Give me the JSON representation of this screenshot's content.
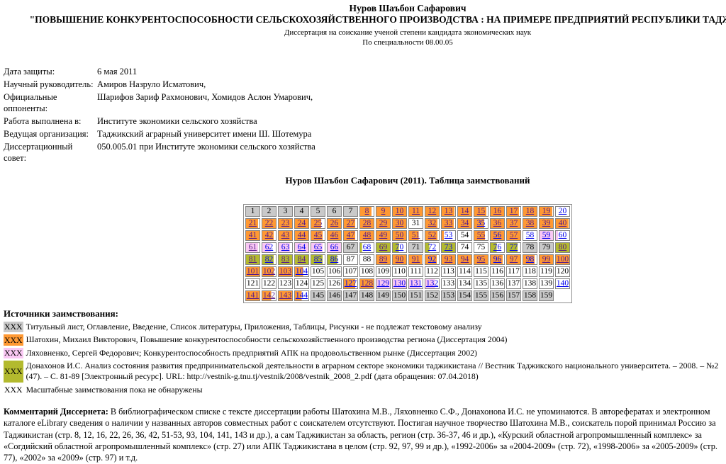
{
  "header": {
    "author": "Нуров Шаъбон Сафарович",
    "title": "\"ПОВЫШЕНИЕ КОНКУРЕНТОСПОСОБНОСТИ СЕЛЬСКОХОЗЯЙСТВЕННОГО ПРОИЗВОДСТВА : НА ПРИМЕРЕ ПРЕДПРИЯТИЙ РЕСПУБЛИКИ ТАДЖИКИСТАН\"",
    "subtitle": "Диссертация на соискание ученой степени кандидата экономических наук",
    "specialty": "По специальности 08.00.05"
  },
  "meta": {
    "rows": [
      {
        "label": "Дата защиты:",
        "value": "6 мая 2011"
      },
      {
        "label": "Научный руководитель:",
        "value": "Амиров Назруло Исматович,"
      },
      {
        "label": "Официальные оппоненты:",
        "value": "Шарифов Зариф Рахмонович, Хомидов Аслон Умарович,"
      },
      {
        "label": "Работа выполнена в:",
        "value": "Институте экономики сельского хозяйства"
      },
      {
        "label": "Ведущая организация:",
        "value": "Таджикский аграрный университет имени Ш. Шотемура"
      },
      {
        "label": "Диссертационный совет:",
        "value": "050.005.01 при Институте экономики сельского хозяйства"
      }
    ]
  },
  "grid": {
    "title": "Нуров Шаъбон Сафарович (2011). Таблица заимствований",
    "colors": {
      "g": "#c9c9c9",
      "w": "#ffffff",
      "o": "#ff9933",
      "p": "#f9c8f3",
      "l": "#b3ba2e"
    },
    "link_colors": {
      "visited": "#551A8B",
      "unvisited": "#0000EE"
    },
    "rows": [
      [
        [
          "1",
          "g",
          1,
          ""
        ],
        [
          "2",
          "g",
          1,
          ""
        ],
        [
          "3",
          "g",
          1,
          ""
        ],
        [
          "4",
          "g",
          1,
          ""
        ],
        [
          "5",
          "g",
          1,
          ""
        ],
        [
          "6",
          "g",
          1,
          ""
        ],
        [
          "7",
          "g",
          1,
          ""
        ],
        [
          "8",
          "o",
          0.85,
          "v"
        ],
        [
          "9",
          "o",
          1,
          "v"
        ],
        [
          "10",
          "o",
          1,
          "v"
        ],
        [
          "11",
          "o",
          1,
          "v"
        ],
        [
          "12",
          "o",
          1,
          "v"
        ],
        [
          "13",
          "o",
          0.95,
          "v"
        ],
        [
          "14",
          "o",
          1,
          "v"
        ],
        [
          "15",
          "o",
          0.9,
          "v"
        ],
        [
          "16",
          "o",
          1,
          "v"
        ],
        [
          "17",
          "o",
          0.9,
          "v"
        ],
        [
          "18",
          "o",
          1,
          "v"
        ],
        [
          "19",
          "o",
          0.95,
          "v"
        ],
        [
          "20",
          "w",
          0,
          "u"
        ]
      ],
      [
        [
          "21",
          "o",
          0.9,
          "v"
        ],
        [
          "22",
          "o",
          1,
          "v"
        ],
        [
          "23",
          "o",
          1,
          "v"
        ],
        [
          "24",
          "o",
          1,
          "v"
        ],
        [
          "25",
          "o",
          0.75,
          "v"
        ],
        [
          "26",
          "o",
          1,
          "v"
        ],
        [
          "27",
          "o",
          0.85,
          "v"
        ],
        [
          "28",
          "o",
          1,
          "v"
        ],
        [
          "29",
          "o",
          1,
          "v"
        ],
        [
          "30",
          "o",
          1,
          "v"
        ],
        [
          "31",
          "w",
          0,
          ""
        ],
        [
          "32",
          "o",
          0.9,
          "v"
        ],
        [
          "33",
          "o",
          0.9,
          "v"
        ],
        [
          "34",
          "o",
          1,
          "v"
        ],
        [
          "35",
          "o",
          0.75,
          "u"
        ],
        [
          "36",
          "o",
          1,
          "v"
        ],
        [
          "37",
          "o",
          1,
          "v"
        ],
        [
          "38",
          "o",
          1,
          "v"
        ],
        [
          "39",
          "o",
          1,
          "v"
        ],
        [
          "40",
          "o",
          0.95,
          "v"
        ]
      ],
      [
        [
          "41",
          "o",
          1,
          "v"
        ],
        [
          "42",
          "o",
          0.85,
          "v"
        ],
        [
          "43",
          "o",
          1,
          "v"
        ],
        [
          "44",
          "o",
          1,
          "v"
        ],
        [
          "45",
          "o",
          0.85,
          "v"
        ],
        [
          "46",
          "o",
          1,
          "v"
        ],
        [
          "47",
          "o",
          0.85,
          "v"
        ],
        [
          "48",
          "o",
          1,
          "v"
        ],
        [
          "49",
          "o",
          1,
          "v"
        ],
        [
          "50",
          "o",
          1,
          "v"
        ],
        [
          "51",
          "o",
          0.7,
          "v"
        ],
        [
          "52",
          "o",
          0.9,
          "v"
        ],
        [
          "53",
          "o",
          0.15,
          "u"
        ],
        [
          "54",
          "w",
          0,
          ""
        ],
        [
          "55",
          "o",
          0.8,
          "v"
        ],
        [
          "56",
          "o",
          1,
          "u"
        ],
        [
          "57",
          "o",
          1,
          "v"
        ],
        [
          "58",
          "w",
          0,
          "u"
        ],
        [
          "59",
          "p",
          1,
          "u"
        ],
        [
          "60",
          "p",
          0.15,
          "u"
        ]
      ],
      [
        [
          "61",
          "p",
          0.9,
          "v"
        ],
        [
          "62",
          "p",
          0.6,
          "u"
        ],
        [
          "63",
          "p",
          0.85,
          "u"
        ],
        [
          "64",
          "p",
          1,
          "u"
        ],
        [
          "65",
          "p",
          0.85,
          "u"
        ],
        [
          "66",
          "p",
          1,
          "u"
        ],
        [
          "67",
          "g",
          1,
          ""
        ],
        [
          "68",
          "l",
          0.12,
          "u"
        ],
        [
          "69",
          "l",
          1,
          "v"
        ],
        [
          "70",
          "l",
          0.45,
          "u"
        ],
        [
          "71",
          "g",
          1,
          ""
        ],
        [
          "72",
          "l",
          0.3,
          "u"
        ],
        [
          "73",
          "l",
          1,
          "u"
        ],
        [
          "74",
          "w",
          0,
          ""
        ],
        [
          "75",
          "w",
          0,
          ""
        ],
        [
          "76",
          "l",
          0.45,
          "u"
        ],
        [
          "77",
          "l",
          0.8,
          "u"
        ],
        [
          "78",
          "g",
          1,
          ""
        ],
        [
          "79",
          "g",
          1,
          ""
        ],
        [
          "80",
          "l",
          1,
          "v"
        ]
      ],
      [
        [
          "81",
          "l",
          1,
          "v"
        ],
        [
          "82",
          "l",
          0.85,
          "u"
        ],
        [
          "83",
          "l",
          1,
          "v"
        ],
        [
          "84",
          "l",
          1,
          "v"
        ],
        [
          "85",
          "l",
          0.85,
          "u"
        ],
        [
          "86",
          "l",
          0.7,
          "u"
        ],
        [
          "87",
          "w",
          0,
          ""
        ],
        [
          "88",
          "w",
          0,
          ""
        ],
        [
          "89",
          "o",
          1,
          "v"
        ],
        [
          "90",
          "o",
          1,
          "v"
        ],
        [
          "91",
          "o",
          0.95,
          "v"
        ],
        [
          "92",
          "o",
          0.85,
          "u"
        ],
        [
          "93",
          "o",
          1,
          "v"
        ],
        [
          "94",
          "o",
          1,
          "v"
        ],
        [
          "95",
          "o",
          1,
          "v"
        ],
        [
          "96",
          "o",
          0.9,
          "u"
        ],
        [
          "97",
          "o",
          1,
          "v"
        ],
        [
          "98",
          "o",
          0.85,
          "u"
        ],
        [
          "99",
          "o",
          1,
          "v"
        ],
        [
          "100",
          "o",
          1,
          "v"
        ]
      ],
      [
        [
          "101",
          "o",
          1,
          "v"
        ],
        [
          "102",
          "o",
          0.85,
          "v"
        ],
        [
          "103",
          "o",
          1,
          "v"
        ],
        [
          "104",
          "o",
          0.6,
          "u"
        ],
        [
          "105",
          "w",
          0,
          ""
        ],
        [
          "106",
          "w",
          0,
          ""
        ],
        [
          "107",
          "w",
          0,
          ""
        ],
        [
          "108",
          "w",
          0,
          ""
        ],
        [
          "109",
          "w",
          0,
          ""
        ],
        [
          "110",
          "w",
          0,
          ""
        ],
        [
          "111",
          "w",
          0,
          ""
        ],
        [
          "112",
          "w",
          0,
          ""
        ],
        [
          "113",
          "w",
          0,
          ""
        ],
        [
          "114",
          "w",
          0,
          ""
        ],
        [
          "115",
          "w",
          0,
          ""
        ],
        [
          "116",
          "w",
          0,
          ""
        ],
        [
          "117",
          "w",
          0,
          ""
        ],
        [
          "118",
          "w",
          0,
          ""
        ],
        [
          "119",
          "w",
          0,
          ""
        ],
        [
          "120",
          "w",
          0,
          ""
        ]
      ],
      [
        [
          "121",
          "w",
          0,
          ""
        ],
        [
          "122",
          "w",
          0,
          ""
        ],
        [
          "123",
          "w",
          0,
          ""
        ],
        [
          "124",
          "w",
          0,
          ""
        ],
        [
          "125",
          "w",
          0,
          ""
        ],
        [
          "126",
          "w",
          0,
          ""
        ],
        [
          "127",
          "o",
          0.85,
          "u"
        ],
        [
          "128",
          "o",
          1,
          "v"
        ],
        [
          "129",
          "p",
          1,
          "u"
        ],
        [
          "130",
          "p",
          1,
          "u"
        ],
        [
          "131",
          "p",
          0.85,
          "u"
        ],
        [
          "132",
          "p",
          0.7,
          "u"
        ],
        [
          "133",
          "w",
          0,
          ""
        ],
        [
          "134",
          "w",
          0,
          ""
        ],
        [
          "135",
          "w",
          0,
          ""
        ],
        [
          "136",
          "w",
          0,
          ""
        ],
        [
          "137",
          "w",
          0,
          ""
        ],
        [
          "138",
          "w",
          0,
          ""
        ],
        [
          "139",
          "w",
          0,
          ""
        ],
        [
          "140",
          "w",
          0,
          "u"
        ]
      ],
      [
        [
          "141",
          "o",
          1,
          "v"
        ],
        [
          "142",
          "o",
          0.65,
          "v"
        ],
        [
          "143",
          "o",
          1,
          "v"
        ],
        [
          "144",
          "o",
          0.5,
          "u"
        ],
        [
          "145",
          "g",
          1,
          ""
        ],
        [
          "146",
          "g",
          1,
          ""
        ],
        [
          "147",
          "g",
          1,
          ""
        ],
        [
          "148",
          "g",
          1,
          ""
        ],
        [
          "149",
          "g",
          1,
          ""
        ],
        [
          "150",
          "g",
          1,
          ""
        ],
        [
          "151",
          "g",
          1,
          ""
        ],
        [
          "152",
          "g",
          1,
          ""
        ],
        [
          "153",
          "g",
          1,
          ""
        ],
        [
          "154",
          "g",
          1,
          ""
        ],
        [
          "155",
          "g",
          1,
          ""
        ],
        [
          "156",
          "g",
          1,
          ""
        ],
        [
          "157",
          "g",
          1,
          ""
        ],
        [
          "158",
          "g",
          1,
          ""
        ],
        [
          "159",
          "g",
          1,
          ""
        ],
        null
      ]
    ]
  },
  "sources": {
    "heading": "Источники заимствования:",
    "swatch_label": "XXX",
    "items": [
      {
        "color": "g",
        "text": "Титульный лист, Оглавление, Введение, Список литературы, Приложения, Таблицы, Рисунки - не подлежат текстовому анализу"
      },
      {
        "color": "o",
        "text": "Шатохин, Михаил Викторович, Повышение конкурентоспособности сельскохозяйственного производства региона (Диссертация 2004)"
      },
      {
        "color": "p",
        "text": "Ляховненко, Сергей Федорович; Конкурентоспособность предприятий АПК на продовольственном рынке (Диссертация 2002)"
      },
      {
        "color": "l",
        "text": "Донахонов И.С. Анализ состояния развития предпринимательской деятельности в аграрном секторе экономики таджикистана // Вестник Таджикского национального университета. – 2008. – №2 (47). – С. 81-89 [Электронный ресурс]. URL: http://vestnik-g.tnu.tj/vestnik/2008/vestnik_2008_2.pdf (дата обращения: 07.04.2018)"
      },
      {
        "color": null,
        "text": "Масштабные заимствования пока не обнаружены"
      }
    ]
  },
  "comment": {
    "label": "Комментарий Диссернета:",
    "text": " В библиографическом списке с тексте диссертации работы Шатохина М.В., Ляховненко С.Ф., Донахонова И.С. не упоминаются. В авторефератах и электронном каталоге eLibrary сведения о наличии у названных авторов совместных работ с соискателем отсутствуют. Постигая научное творчество Шатохина М.В., соискатель порой принимал Россию за Таджикистан (стр. 8, 12, 16, 22, 26, 36, 42, 51-53, 93, 104, 141, 143 и др.), а сам Таджикистан за область, регион (стр. 36-37, 46 и др.), «Курский областной агропромышленный комплекс» за «Согдийский областной агропромышленный комплекс» (стр. 27) или АПК Таджикистана в целом (стр. 92, 97, 99 и др.), «1992-2006» за «2004-2009» (стр. 72), «1998-2006» за «2005-2009» (стр. 77), «2002» за «2009» (стр. 97) и т.д."
  }
}
